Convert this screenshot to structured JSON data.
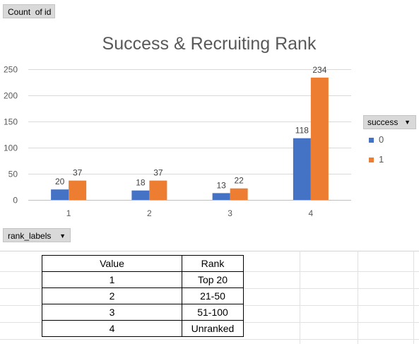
{
  "pivot": {
    "value_field": "Count  of id",
    "axis_field": "rank_labels",
    "legend_field": "success"
  },
  "chart_data": {
    "type": "bar",
    "title": "Success & Recruiting Rank",
    "categories": [
      "1",
      "2",
      "3",
      "4"
    ],
    "series": [
      {
        "name": "0",
        "values": [
          20,
          18,
          13,
          118
        ],
        "color": "#4472c4"
      },
      {
        "name": "1",
        "values": [
          37,
          37,
          22,
          234
        ],
        "color": "#ed7d31"
      }
    ],
    "ylim": [
      0,
      250
    ],
    "yticks": [
      "0",
      "50",
      "100",
      "150",
      "200",
      "250"
    ],
    "grid": true,
    "legend_position": "right"
  },
  "table": {
    "headers": [
      "Value",
      "Rank"
    ],
    "rows": [
      [
        "1",
        "Top 20"
      ],
      [
        "2",
        "21-50"
      ],
      [
        "3",
        "51-100"
      ],
      [
        "4",
        "Unranked"
      ]
    ]
  }
}
